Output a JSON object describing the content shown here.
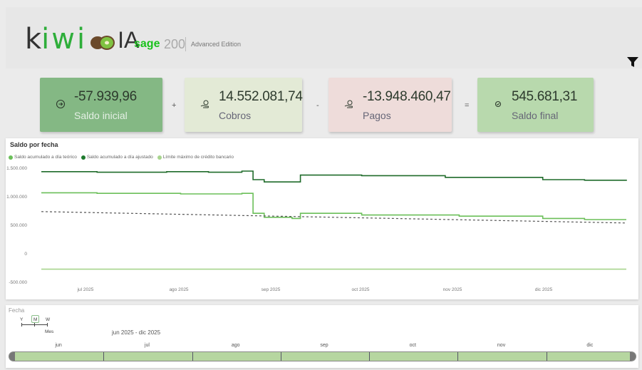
{
  "header": {
    "logo": {
      "k": "k",
      "iwi": "iwi",
      "ia": "IA"
    },
    "sage": "sage",
    "version": "200",
    "edition": "Advanced Edition",
    "filter_icon": "filter-funnel-icon"
  },
  "kpis": [
    {
      "value": "-57.939,96",
      "label": "Saldo inicial",
      "icon": "arrow-circle-icon"
    },
    {
      "value": "14.552.081,74",
      "label": "Cobros",
      "icon": "money-hand-icon"
    },
    {
      "value": "-13.948.460,47",
      "label": "Pagos",
      "icon": "money-hand-icon"
    },
    {
      "value": "545.681,31",
      "label": "Saldo final",
      "icon": "check-circle-icon"
    }
  ],
  "operators": [
    "+",
    "-",
    "="
  ],
  "chart": {
    "title": "Saldo por fecha",
    "legend": [
      {
        "label": "Saldo acumulado a día teórico",
        "color": "#6bbf59"
      },
      {
        "label": "Saldo acumulado a día ajustado",
        "color": "#1f7a2e"
      },
      {
        "label": "Límite máximo de crédito bancario",
        "color": "#a8d58e"
      }
    ]
  },
  "chart_data": {
    "type": "line",
    "title": "Saldo por fecha",
    "y_ticks": [
      "1.500.000",
      "1.000.000",
      "500.000",
      "0",
      "-500.000"
    ],
    "ylim": [
      -500000,
      1500000
    ],
    "x_ticks": [
      "jul 2025",
      "ago 2025",
      "sep 2025",
      "oct 2025",
      "nov 2025",
      "dic 2025"
    ],
    "x_range": [
      0,
      210
    ],
    "series": [
      {
        "name": "Saldo acumulado a día ajustado",
        "color": "#1f6b2a",
        "points": [
          [
            0,
            1440000
          ],
          [
            20,
            1430000
          ],
          [
            45,
            1440000
          ],
          [
            60,
            1430000
          ],
          [
            72,
            1450000
          ],
          [
            76,
            1300000
          ],
          [
            80,
            1260000
          ],
          [
            90,
            1260000
          ],
          [
            93,
            1380000
          ],
          [
            115,
            1370000
          ],
          [
            145,
            1340000
          ],
          [
            180,
            1300000
          ],
          [
            195,
            1290000
          ],
          [
            210,
            1280000
          ]
        ]
      },
      {
        "name": "Saldo acumulado a día teórico",
        "color": "#6bbf59",
        "points": [
          [
            0,
            1070000
          ],
          [
            20,
            1060000
          ],
          [
            50,
            1050000
          ],
          [
            72,
            1060000
          ],
          [
            76,
            710000
          ],
          [
            80,
            640000
          ],
          [
            90,
            620000
          ],
          [
            93,
            710000
          ],
          [
            115,
            680000
          ],
          [
            150,
            660000
          ],
          [
            180,
            620000
          ],
          [
            195,
            600000
          ],
          [
            210,
            600000
          ]
        ]
      },
      {
        "name": "Límite máximo de crédito bancario",
        "color": "#a8d58e",
        "points": [
          [
            0,
            -270000
          ],
          [
            210,
            -270000
          ]
        ]
      },
      {
        "name": "",
        "color": "#555555",
        "dashed": true,
        "points": [
          [
            0,
            740000
          ],
          [
            210,
            540000
          ]
        ]
      }
    ]
  },
  "slicer": {
    "title": "Fecha",
    "granularity": [
      "Y",
      "M",
      "W"
    ],
    "granularity_label": "Mes",
    "range": "jun 2025 - dic 2025",
    "months": [
      "jun",
      "jul",
      "ago",
      "sep",
      "oct",
      "nov",
      "dic"
    ]
  }
}
